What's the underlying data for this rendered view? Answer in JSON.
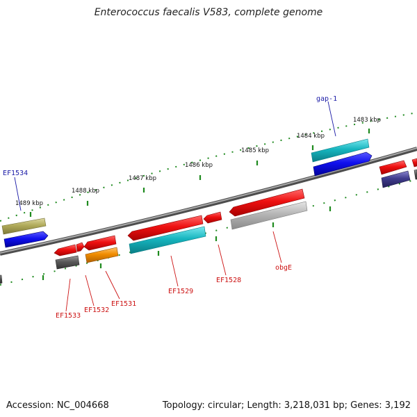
{
  "title": "Enterococcus faecalis V583, complete genome",
  "footer": {
    "accession": "Accession: NC_004668",
    "summary": "Topology: circular; Length: 3,218,031 bp; Genes: 3,192"
  },
  "scale_labels": [
    "1489 kbp",
    "1488 kbp",
    "1487 kbp",
    "1486 kbp",
    "1485 kbp",
    "1484 kbp",
    "1483 kbp"
  ],
  "gene_labels": [
    {
      "id": "EF1534",
      "text": "EF1534",
      "color": "#1a1aa6"
    },
    {
      "id": "gap-1",
      "text": "gap-1",
      "color": "#1a1aa6"
    },
    {
      "id": "EF1533",
      "text": "EF1533",
      "color": "#cc1111"
    },
    {
      "id": "EF1532",
      "text": "EF1532",
      "color": "#cc1111"
    },
    {
      "id": "EF1531",
      "text": "EF1531",
      "color": "#cc1111"
    },
    {
      "id": "EF1529",
      "text": "EF1529",
      "color": "#cc1111"
    },
    {
      "id": "EF1528",
      "text": "EF1528",
      "color": "#cc1111"
    },
    {
      "id": "obgE",
      "text": "obgE",
      "color": "#cc1111"
    }
  ],
  "colors": {
    "backbone": "#7a7a7a",
    "tick": "#1e8a1e",
    "forward_cds": "#e8141c",
    "reverse_cds": "#1414e0",
    "cyan": "#17b7c0",
    "olive": "#b3ad5c",
    "gray": "#a8a8a8",
    "dark_gray": "#555555",
    "orange": "#f08c00",
    "purple": "#3d3a8a"
  }
}
